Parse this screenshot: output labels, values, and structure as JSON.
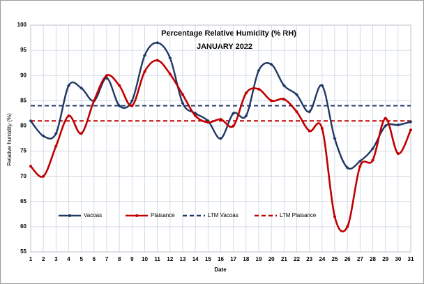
{
  "chart_data": {
    "type": "line",
    "title": "Percentage Relative Humidity (% RH)",
    "subtitle": "JANUARY  2022",
    "x_label": "Date",
    "y_label": "Relative  humidity  (%)",
    "x": [
      1,
      2,
      3,
      4,
      5,
      6,
      7,
      8,
      9,
      10,
      11,
      12,
      13,
      14,
      15,
      16,
      17,
      18,
      19,
      20,
      21,
      22,
      23,
      24,
      25,
      26,
      27,
      28,
      29,
      30,
      31
    ],
    "series": [
      {
        "name": "Vacoas",
        "color": "#1f3864",
        "values": [
          81,
          78,
          78.5,
          88,
          87.5,
          85,
          89.5,
          84,
          85,
          94,
          96.5,
          93.5,
          84.5,
          82.5,
          81,
          77.5,
          82.5,
          82,
          91,
          92.2,
          88,
          86.2,
          82.8,
          88,
          77.5,
          71.7,
          73,
          75.5,
          80,
          80.2,
          80.8
        ]
      },
      {
        "name": "Plaisance",
        "color": "#c00000",
        "values": [
          72,
          70,
          76,
          82,
          78.5,
          85,
          90,
          88,
          84,
          90.8,
          93,
          90.3,
          86.2,
          82,
          80.7,
          81.3,
          80,
          86.5,
          87.3,
          85,
          85.3,
          82.8,
          79,
          79.5,
          62,
          60,
          72,
          73.2,
          81.5,
          74.5,
          79.2
        ]
      }
    ],
    "reference_lines": [
      {
        "name": "LTM Vacoas",
        "value": 84,
        "color": "#1f3864"
      },
      {
        "name": "LTM Plaisance",
        "value": 81,
        "color": "#c00000"
      }
    ],
    "xlim": [
      1,
      31
    ],
    "xticks": [
      1,
      2,
      3,
      4,
      5,
      6,
      7,
      8,
      9,
      10,
      11,
      12,
      13,
      14,
      15,
      16,
      17,
      18,
      19,
      20,
      21,
      22,
      23,
      24,
      25,
      26,
      27,
      28,
      29,
      30,
      31
    ],
    "ylim": [
      55,
      100
    ],
    "yticks": [
      55,
      60,
      65,
      70,
      75,
      80,
      85,
      90,
      95,
      100
    ],
    "grid": true,
    "legend": "lower left"
  }
}
